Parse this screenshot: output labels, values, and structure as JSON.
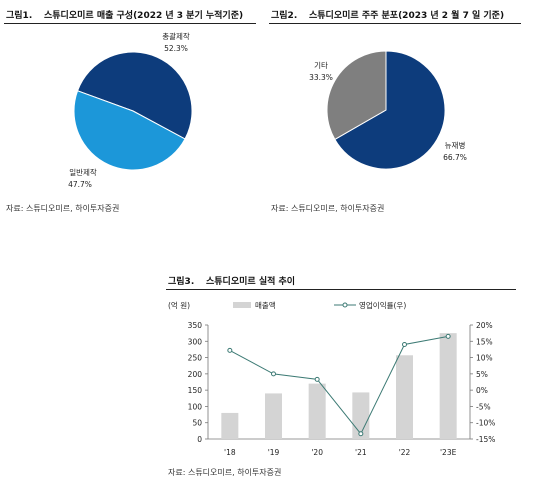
{
  "colors": {
    "dark_blue": "#0d3c7c",
    "light_blue": "#1c97d9",
    "gray_slice": "#7f7f7f",
    "bar_gray": "#d4d4d4",
    "line_teal": "#3c7a74",
    "axis": "#777777"
  },
  "chart_data": [
    {
      "type": "pie",
      "figure_number": "그림1.",
      "title": "스튜디오미르 매출 구성(2022 년 3 분기 누적기준)",
      "slices": [
        {
          "label": "총괄제작",
          "value": 52.3,
          "value_label": "52.3%",
          "color": "#0d3c7c"
        },
        {
          "label": "일반제작",
          "value": 47.7,
          "value_label": "47.7%",
          "color": "#1c97d9"
        }
      ],
      "source": "자료: 스튜디오미르, 하이투자증권"
    },
    {
      "type": "pie",
      "figure_number": "그림2.",
      "title": "스튜디오미르 주주 분포(2023 년 2 월 7 일 기준)",
      "slices": [
        {
          "label": "뉴재병",
          "value": 66.7,
          "value_label": "66.7%",
          "color": "#0d3c7c"
        },
        {
          "label": "기타",
          "value": 33.3,
          "value_label": "33.3%",
          "color": "#7f7f7f"
        }
      ],
      "source": "자료: 스튜디오미르, 하이투자증권"
    },
    {
      "type": "bar",
      "figure_number": "그림3.",
      "title": "스튜디오미르 실적 추이",
      "categories": [
        "'18",
        "'19",
        "'20",
        "'21",
        "'22",
        "'23E"
      ],
      "series": [
        {
          "name": "매출액",
          "kind": "bar",
          "axis": "left",
          "values": [
            80,
            140,
            170,
            143,
            257,
            325
          ]
        },
        {
          "name": "영업이익률(우)",
          "kind": "line",
          "axis": "right",
          "values": [
            12.2,
            5.0,
            3.3,
            -13.4,
            14.0,
            16.5
          ]
        }
      ],
      "ylabel": "(억 원)",
      "ylim": [
        0,
        350
      ],
      "yticks": [
        "350",
        "300",
        "250",
        "200",
        "150",
        "100",
        "50",
        "0"
      ],
      "y2lim": [
        -15,
        20
      ],
      "y2ticks": [
        "20%",
        "15%",
        "10%",
        "5%",
        "0%",
        "-5%",
        "-10%",
        "-15%"
      ],
      "legend_placement": "top",
      "grid": false,
      "source": "자료: 스튜디오미르, 하이투자증권"
    }
  ]
}
